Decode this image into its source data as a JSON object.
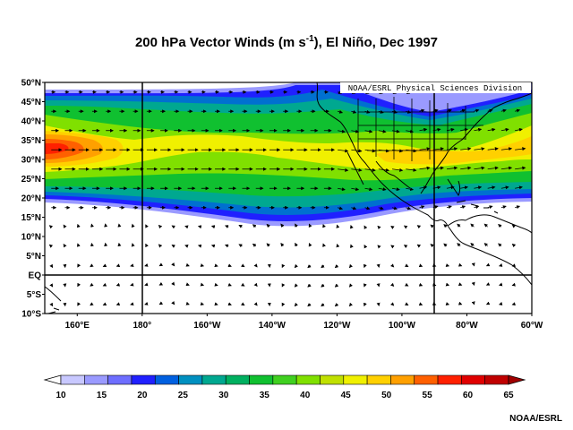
{
  "title": {
    "main": "200 hPa Vector Winds (m s",
    "superscript": "-1",
    "suffix": "), El Niño, Dec 1997"
  },
  "map": {
    "attribution_box": "NOAA/ESRL Physical Sciences Division",
    "lat_labels": [
      "50°N",
      "45°N",
      "40°N",
      "35°N",
      "30°N",
      "25°N",
      "20°N",
      "15°N",
      "10°N",
      "5°N",
      "EQ",
      "5°S",
      "10°S"
    ],
    "lon_labels": [
      "160°E",
      "180°",
      "160°W",
      "140°W",
      "120°W",
      "100°W",
      "80°W",
      "60°W"
    ],
    "lat_range": [
      -10,
      50
    ],
    "lon_range": [
      150,
      300
    ]
  },
  "colorbar": {
    "ticks": [
      "10",
      "15",
      "20",
      "25",
      "30",
      "35",
      "40",
      "45",
      "50",
      "55",
      "60",
      "65"
    ],
    "colors": [
      "#ffffff",
      "#c8c8ff",
      "#9a9aff",
      "#6e6eff",
      "#2020ff",
      "#0060e0",
      "#0090c0",
      "#00a890",
      "#00b060",
      "#10c030",
      "#40d020",
      "#80e000",
      "#c0e000",
      "#f0f000",
      "#ffd000",
      "#ffa000",
      "#ff6000",
      "#ff2000",
      "#e00000",
      "#c00000",
      "#a00000"
    ]
  },
  "footer": {
    "credit": "NOAA/ESRL"
  }
}
